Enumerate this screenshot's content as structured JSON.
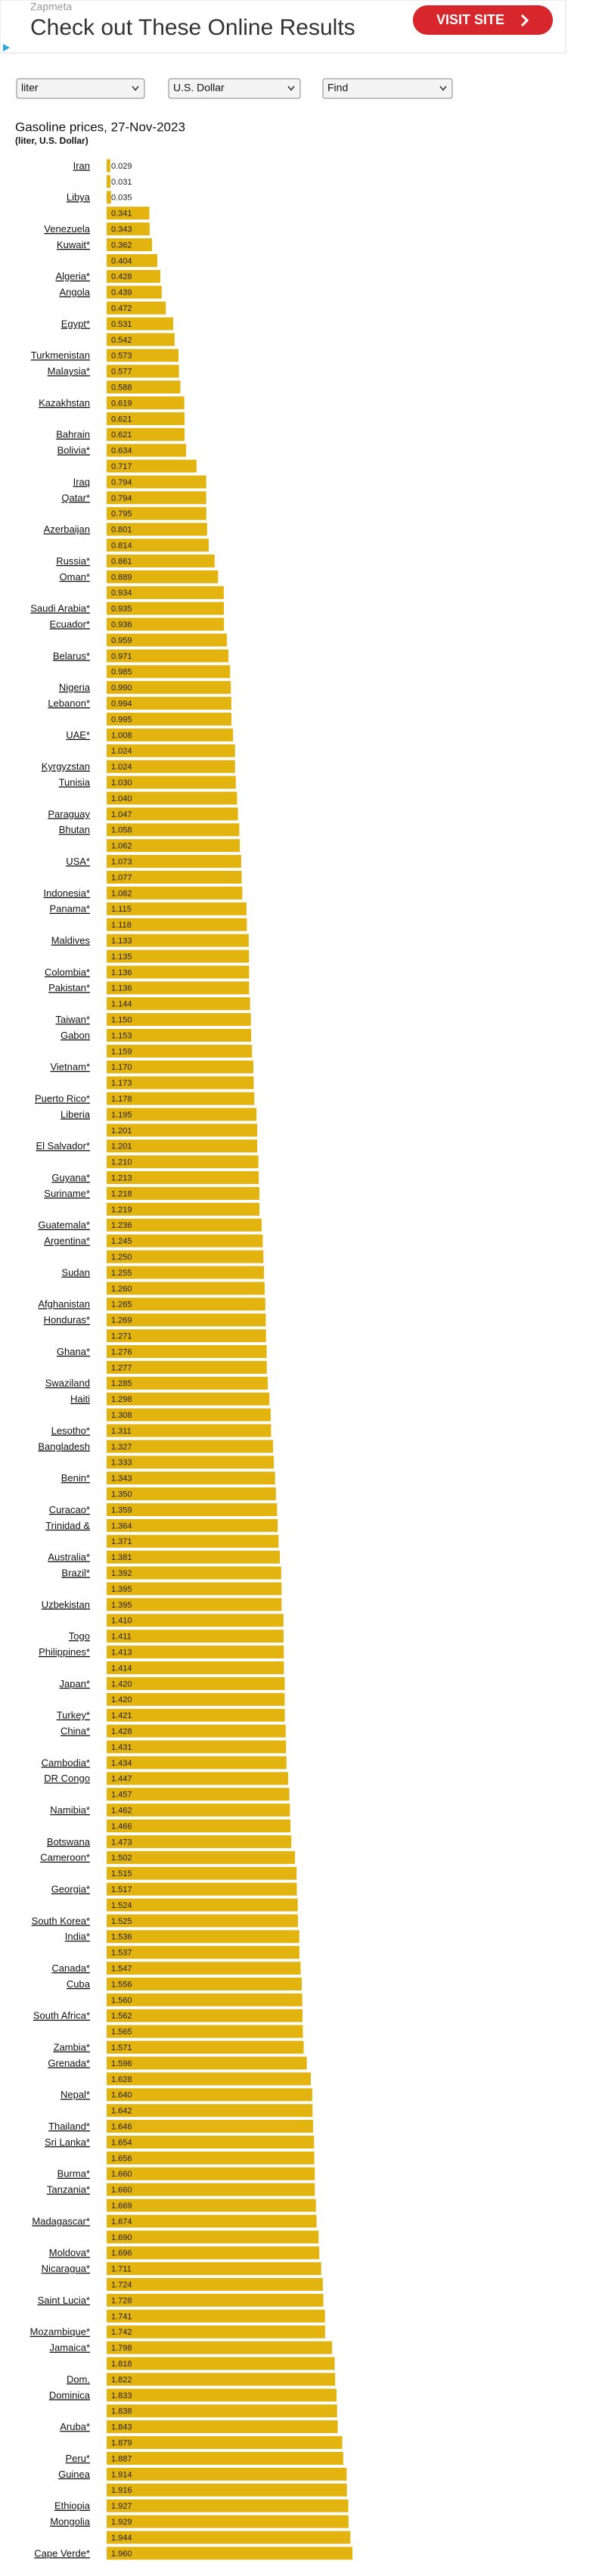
{
  "ad": {
    "source": "Zapmeta",
    "headline": "Check out These Online Results",
    "button": "VISIT SITE"
  },
  "controls": {
    "unit": "liter",
    "currency": "U.S. Dollar",
    "find": "Find"
  },
  "chart_data": {
    "type": "bar",
    "orientation": "horizontal",
    "title": "Gasoline prices, 27-Nov-2023",
    "subtitle": "(liter, U.S. Dollar)",
    "color": "#e3b30f",
    "categories": [
      "Iran",
      null,
      "Libya",
      null,
      "Venezuela",
      "Kuwait*",
      null,
      "Algeria*",
      "Angola",
      null,
      "Egypt*",
      null,
      "Turkmenistan",
      "Malaysia*",
      null,
      "Kazakhstan",
      null,
      "Bahrain",
      "Bolivia*",
      null,
      "Iraq",
      "Qatar*",
      null,
      "Azerbaijan",
      null,
      "Russia*",
      "Oman*",
      null,
      "Saudi Arabia*",
      "Ecuador*",
      null,
      "Belarus*",
      null,
      "Nigeria",
      "Lebanon*",
      null,
      "UAE*",
      null,
      "Kyrgyzstan",
      "Tunisia",
      null,
      "Paraguay",
      "Bhutan",
      null,
      "USA*",
      null,
      "Indonesia*",
      "Panama*",
      null,
      "Maldives",
      null,
      "Colombia*",
      "Pakistan*",
      null,
      "Taiwan*",
      "Gabon",
      null,
      "Vietnam*",
      null,
      "Puerto Rico*",
      "Liberia",
      null,
      "El Salvador*",
      null,
      "Guyana*",
      "Suriname*",
      null,
      "Guatemala*",
      "Argentina*",
      null,
      "Sudan",
      null,
      "Afghanistan",
      "Honduras*",
      null,
      "Ghana*",
      null,
      "Swaziland",
      "Haiti",
      null,
      "Lesotho*",
      "Bangladesh",
      null,
      "Benin*",
      null,
      "Curacao*",
      "Trinidad &",
      null,
      "Australia*",
      "Brazil*",
      null,
      "Uzbekistan",
      null,
      "Togo",
      "Philippines*",
      null,
      "Japan*",
      null,
      "Turkey*",
      "China*",
      null,
      "Cambodia*",
      "DR Congo",
      null,
      "Namibia*",
      null,
      "Botswana",
      "Cameroon*",
      null,
      "Georgia*",
      null,
      "South Korea*",
      "India*",
      null,
      "Canada*",
      "Cuba",
      null,
      "South Africa*",
      null,
      "Zambia*",
      "Grenada*",
      null,
      "Nepal*",
      null,
      "Thailand*",
      "Sri Lanka*",
      null,
      "Burma*",
      "Tanzania*",
      null,
      "Madagascar*",
      null,
      "Moldova*",
      "Nicaragua*",
      null,
      "Saint Lucia*",
      null,
      "Mozambique*",
      "Jamaica*",
      null,
      "Dom.",
      "Dominica",
      null,
      "Aruba*",
      null,
      "Peru*",
      "Guinea",
      null,
      "Ethiopia",
      "Mongolia",
      null,
      "Cape Verde*"
    ],
    "values": [
      0.029,
      0.031,
      0.035,
      0.341,
      0.343,
      0.362,
      0.404,
      0.428,
      0.439,
      0.472,
      0.531,
      0.542,
      0.573,
      0.577,
      0.588,
      0.619,
      0.621,
      0.621,
      0.634,
      0.717,
      0.794,
      0.794,
      0.795,
      0.801,
      0.814,
      0.861,
      0.889,
      0.934,
      0.935,
      0.936,
      0.959,
      0.971,
      0.985,
      0.99,
      0.994,
      0.995,
      1.008,
      1.024,
      1.024,
      1.03,
      1.04,
      1.047,
      1.058,
      1.062,
      1.073,
      1.077,
      1.082,
      1.115,
      1.118,
      1.133,
      1.135,
      1.136,
      1.136,
      1.144,
      1.15,
      1.153,
      1.159,
      1.17,
      1.173,
      1.178,
      1.195,
      1.201,
      1.201,
      1.21,
      1.213,
      1.218,
      1.219,
      1.236,
      1.245,
      1.25,
      1.255,
      1.26,
      1.265,
      1.269,
      1.271,
      1.276,
      1.277,
      1.285,
      1.298,
      1.308,
      1.311,
      1.327,
      1.333,
      1.343,
      1.35,
      1.359,
      1.364,
      1.371,
      1.381,
      1.392,
      1.395,
      1.395,
      1.41,
      1.411,
      1.413,
      1.414,
      1.42,
      1.42,
      1.421,
      1.428,
      1.431,
      1.434,
      1.447,
      1.457,
      1.462,
      1.466,
      1.473,
      1.502,
      1.515,
      1.517,
      1.524,
      1.525,
      1.536,
      1.537,
      1.547,
      1.556,
      1.56,
      1.562,
      1.565,
      1.571,
      1.596,
      1.628,
      1.64,
      1.642,
      1.646,
      1.654,
      1.656,
      1.66,
      1.66,
      1.669,
      1.674,
      1.69,
      1.696,
      1.711,
      1.724,
      1.728,
      1.741,
      1.742,
      1.798,
      1.818,
      1.822,
      1.833,
      1.838,
      1.843,
      1.879,
      1.887,
      1.914,
      1.916,
      1.927,
      1.929,
      1.944,
      1.96
    ],
    "value_labels": [
      "0.029",
      "0.031",
      "0.035",
      "0.341",
      "0.343",
      "0.362",
      "0.404",
      "0.428",
      "0.439",
      "0.472",
      "0.531",
      "0.542",
      "0.573",
      "0.577",
      "0.588",
      "0.619",
      "0.621",
      "0.621",
      "0.634",
      "0.717",
      "0.794",
      "0.794",
      "0.795",
      "0.801",
      "0.814",
      "0.861",
      "0.889",
      "0.934",
      "0.935",
      "0.936",
      "0.959",
      "0.971",
      "0.985",
      "0.990",
      "0.994",
      "0.995",
      "1.008",
      "1.024",
      "1.024",
      "1.030",
      "1.040",
      "1.047",
      "1.058",
      "1.062",
      "1.073",
      "1.077",
      "1.082",
      "1.115",
      "1.118",
      "1.133",
      "1.135",
      "1.136",
      "1.136",
      "1.144",
      "1.150",
      "1.153",
      "1.159",
      "1.170",
      "1.173",
      "1.178",
      "1.195",
      "1.201",
      "1.201",
      "1.210",
      "1.213",
      "1.218",
      "1.219",
      "1.236",
      "1.245",
      "1.250",
      "1.255",
      "1.260",
      "1.265",
      "1.269",
      "1.271",
      "1.276",
      "1.277",
      "1.285",
      "1.298",
      "1.308",
      "1.311",
      "1.327",
      "1.333",
      "1.343",
      "1.350",
      "1.359",
      "1.364",
      "1.371",
      "1.381",
      "1.392",
      "1.395",
      "1.395",
      "1.410",
      "1.411",
      "1.413",
      "1.414",
      "1.420",
      "1.420",
      "1.421",
      "1.428",
      "1.431",
      "1.434",
      "1.447",
      "1.457",
      "1.462",
      "1.466",
      "1.473",
      "1.502",
      "1.515",
      "1.517",
      "1.524",
      "1.525",
      "1.536",
      "1.537",
      "1.547",
      "1.556",
      "1.560",
      "1.562",
      "1.565",
      "1.571",
      "1.596",
      "1.628",
      "1.640",
      "1.642",
      "1.646",
      "1.654",
      "1.656",
      "1.660",
      "1.660",
      "1.669",
      "1.674",
      "1.690",
      "1.696",
      "1.711",
      "1.724",
      "1.728",
      "1.741",
      "1.742",
      "1.798",
      "1.818",
      "1.822",
      "1.833",
      "1.838",
      "1.843",
      "1.879",
      "1.887",
      "1.914",
      "1.916",
      "1.927",
      "1.929",
      "1.944",
      "1.960"
    ]
  }
}
